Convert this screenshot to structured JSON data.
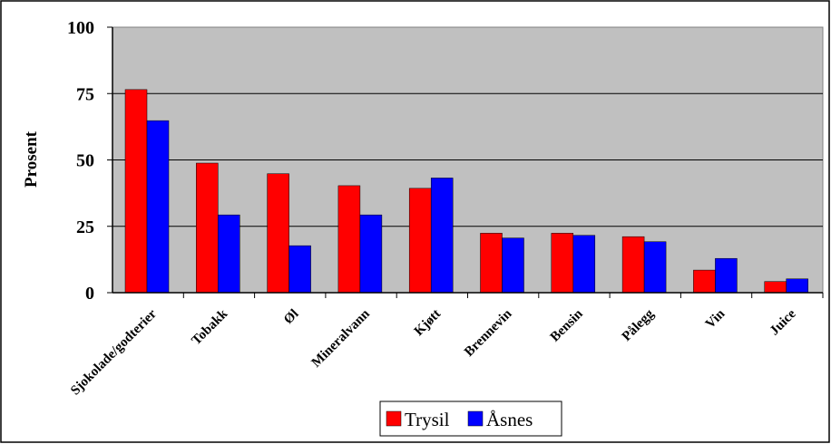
{
  "chart_data": {
    "type": "bar",
    "ylabel": "Prosent",
    "xlabel": "",
    "ylim": [
      0,
      100
    ],
    "yticks": [
      "0",
      "25",
      "50",
      "75",
      "100"
    ],
    "grid": true,
    "legend_position": "bottom",
    "plot_background": "#c0c0c0",
    "categories": [
      "Sjokolade/godterier",
      "Tobakk",
      "Øl",
      "Mineralvann",
      "Kjøtt",
      "Brennevin",
      "Bensin",
      "Pålegg",
      "Vin",
      "Juice"
    ],
    "series": [
      {
        "name": "Trysil",
        "color": "#ff0000",
        "values": [
          76.5,
          48.8,
          44.8,
          40.3,
          39.3,
          22.4,
          22.4,
          21.1,
          8.5,
          4.2
        ]
      },
      {
        "name": "Åsnes",
        "color": "#0000ff",
        "values": [
          64.8,
          29.3,
          17.7,
          29.3,
          43.2,
          20.6,
          21.6,
          19.2,
          12.9,
          5.2
        ]
      }
    ]
  }
}
